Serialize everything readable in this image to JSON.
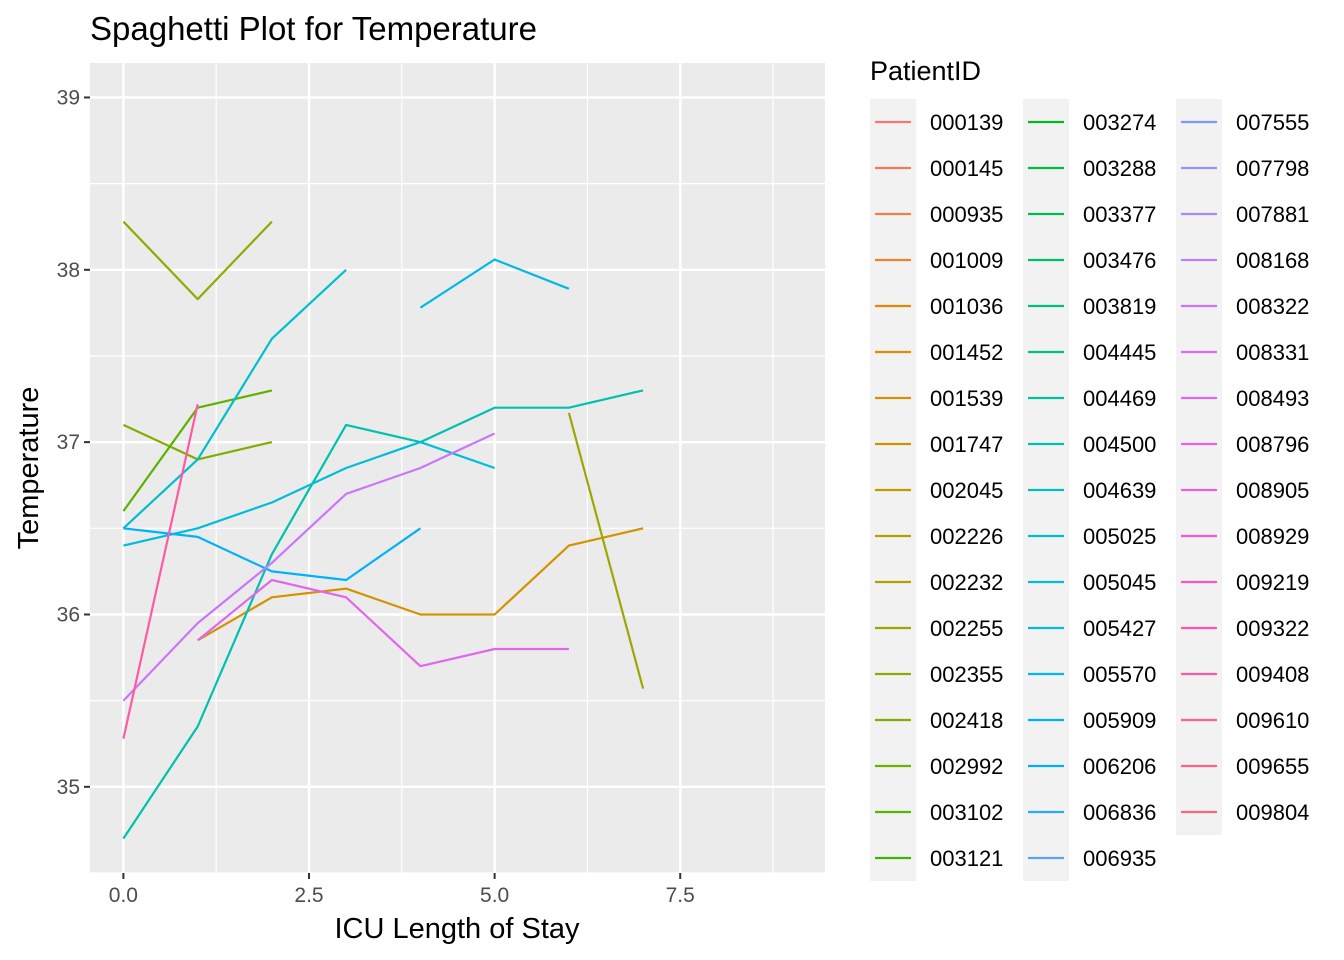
{
  "chart_data": {
    "type": "line",
    "title": "Spaghetti Plot for Temperature",
    "xlabel": "ICU Length of Stay",
    "ylabel": "Temperature",
    "xlim": [
      -0.45,
      9.45
    ],
    "ylim": [
      34.5,
      39.2
    ],
    "x_ticks": [
      0,
      2.5,
      5,
      7.5
    ],
    "x_tick_labels": [
      "0.0",
      "2.5",
      "5.0",
      "7.5"
    ],
    "y_ticks": [
      35,
      36,
      37,
      38,
      39
    ],
    "y_tick_labels": [
      "35",
      "36",
      "37",
      "38",
      "39"
    ],
    "grid": true,
    "legend": {
      "title": "PatientID",
      "position": "right",
      "columns": 3
    },
    "series": [
      {
        "name": "000139",
        "color": "#F8766D",
        "x": [],
        "y": []
      },
      {
        "name": "000145",
        "color": "#F47A5C",
        "x": [],
        "y": []
      },
      {
        "name": "000935",
        "color": "#EF7F49",
        "x": [],
        "y": []
      },
      {
        "name": "001009",
        "color": "#E98531",
        "x": [],
        "y": []
      },
      {
        "name": "001036",
        "color": "#E38900",
        "x": [],
        "y": []
      },
      {
        "name": "001452",
        "color": "#DC8E00",
        "x": [],
        "y": []
      },
      {
        "name": "001539",
        "color": "#D39200",
        "x": [
          1,
          2,
          3,
          4,
          5,
          6,
          7
        ],
        "y": [
          35.85,
          36.1,
          36.15,
          36.0,
          36.0,
          36.4,
          36.5
        ]
      },
      {
        "name": "001747",
        "color": "#CA9600",
        "x": [],
        "y": []
      },
      {
        "name": "002045",
        "color": "#C09B00",
        "x": [],
        "y": []
      },
      {
        "name": "002226",
        "color": "#B59F00",
        "x": [],
        "y": []
      },
      {
        "name": "002232",
        "color": "#AAA300",
        "x": [],
        "y": []
      },
      {
        "name": "002255",
        "color": "#9EA700",
        "x": [
          6,
          7
        ],
        "y": [
          37.17,
          35.57
        ]
      },
      {
        "name": "002355",
        "color": "#90AA00",
        "x": [
          0,
          1,
          2
        ],
        "y": [
          38.28,
          37.83,
          38.28
        ]
      },
      {
        "name": "002418",
        "color": "#81AD00",
        "x": [
          0,
          1,
          2
        ],
        "y": [
          37.1,
          36.9,
          37.0
        ]
      },
      {
        "name": "002992",
        "color": "#70B000",
        "x": [],
        "y": []
      },
      {
        "name": "003102",
        "color": "#5BB300",
        "x": [
          0,
          1,
          2
        ],
        "y": [
          36.6,
          37.2,
          37.3
        ]
      },
      {
        "name": "003121",
        "color": "#3DB600",
        "x": [],
        "y": []
      },
      {
        "name": "003274",
        "color": "#00B81F",
        "x": [],
        "y": []
      },
      {
        "name": "003288",
        "color": "#00BA3E",
        "x": [],
        "y": []
      },
      {
        "name": "003377",
        "color": "#00BB55",
        "x": [],
        "y": []
      },
      {
        "name": "003476",
        "color": "#00BD69",
        "x": [],
        "y": []
      },
      {
        "name": "003819",
        "color": "#00BE7C",
        "x": [],
        "y": []
      },
      {
        "name": "004445",
        "color": "#00BF8D",
        "x": [],
        "y": []
      },
      {
        "name": "004469",
        "color": "#00C09E",
        "x": [],
        "y": []
      },
      {
        "name": "004500",
        "color": "#00C0AE",
        "x": [
          0,
          1,
          2,
          3,
          4,
          5,
          6,
          7
        ],
        "y": [
          34.7,
          35.35,
          36.35,
          37.1,
          37.0,
          37.2,
          37.2,
          37.3
        ]
      },
      {
        "name": "004639",
        "color": "#00C0BD",
        "x": [],
        "y": []
      },
      {
        "name": "005025",
        "color": "#00BFCB",
        "x": [
          0,
          1,
          2,
          3
        ],
        "y": [
          36.5,
          36.9,
          37.6,
          38.0
        ]
      },
      {
        "name": "005045",
        "color": "#00BDD9",
        "x": [
          0,
          1,
          2,
          3,
          4,
          5
        ],
        "y": [
          36.4,
          36.5,
          36.65,
          36.85,
          37.0,
          36.85
        ]
      },
      {
        "name": "005427",
        "color": "#00BAE5",
        "x": [
          4,
          5,
          6
        ],
        "y": [
          37.78,
          38.06,
          37.89
        ]
      },
      {
        "name": "005570",
        "color": "#00B7F1",
        "x": [],
        "y": []
      },
      {
        "name": "005909",
        "color": "#00B2FB",
        "x": [
          0,
          1,
          2,
          3,
          4
        ],
        "y": [
          36.5,
          36.45,
          36.25,
          36.2,
          36.5
        ]
      },
      {
        "name": "006206",
        "color": "#00ADFF",
        "x": [],
        "y": []
      },
      {
        "name": "006836",
        "color": "#29A8FF",
        "x": [],
        "y": []
      },
      {
        "name": "006935",
        "color": "#5DA1FF",
        "x": [],
        "y": []
      },
      {
        "name": "007555",
        "color": "#7D9AFF",
        "x": [],
        "y": []
      },
      {
        "name": "007798",
        "color": "#9592FF",
        "x": [],
        "y": []
      },
      {
        "name": "007881",
        "color": "#A989FF",
        "x": [],
        "y": []
      },
      {
        "name": "008168",
        "color": "#BA80FF",
        "x": [],
        "y": []
      },
      {
        "name": "008322",
        "color": "#C977FA",
        "x": [
          0,
          1,
          2,
          3,
          4,
          5
        ],
        "y": [
          35.5,
          35.95,
          36.3,
          36.7,
          36.85,
          37.05
        ]
      },
      {
        "name": "008331",
        "color": "#D66FF4",
        "x": [],
        "y": []
      },
      {
        "name": "008493",
        "color": "#E167EC",
        "x": [
          1,
          2,
          3,
          4,
          5,
          6
        ],
        "y": [
          35.85,
          36.2,
          36.1,
          35.7,
          35.8,
          35.8
        ]
      },
      {
        "name": "008796",
        "color": "#EA61E3",
        "x": [],
        "y": []
      },
      {
        "name": "008905",
        "color": "#F15CD9",
        "x": [],
        "y": []
      },
      {
        "name": "008929",
        "color": "#F758CD",
        "x": [],
        "y": []
      },
      {
        "name": "009219",
        "color": "#FB56C1",
        "x": [],
        "y": []
      },
      {
        "name": "009322",
        "color": "#FE56B4",
        "x": [],
        "y": []
      },
      {
        "name": "009408",
        "color": "#FF59A6",
        "x": [
          0,
          1
        ],
        "y": [
          35.28,
          37.22
        ]
      },
      {
        "name": "009610",
        "color": "#FE5D97",
        "x": [],
        "y": []
      },
      {
        "name": "009655",
        "color": "#FC6388",
        "x": [],
        "y": []
      },
      {
        "name": "009804",
        "color": "#F86B78",
        "x": [],
        "y": []
      }
    ]
  }
}
